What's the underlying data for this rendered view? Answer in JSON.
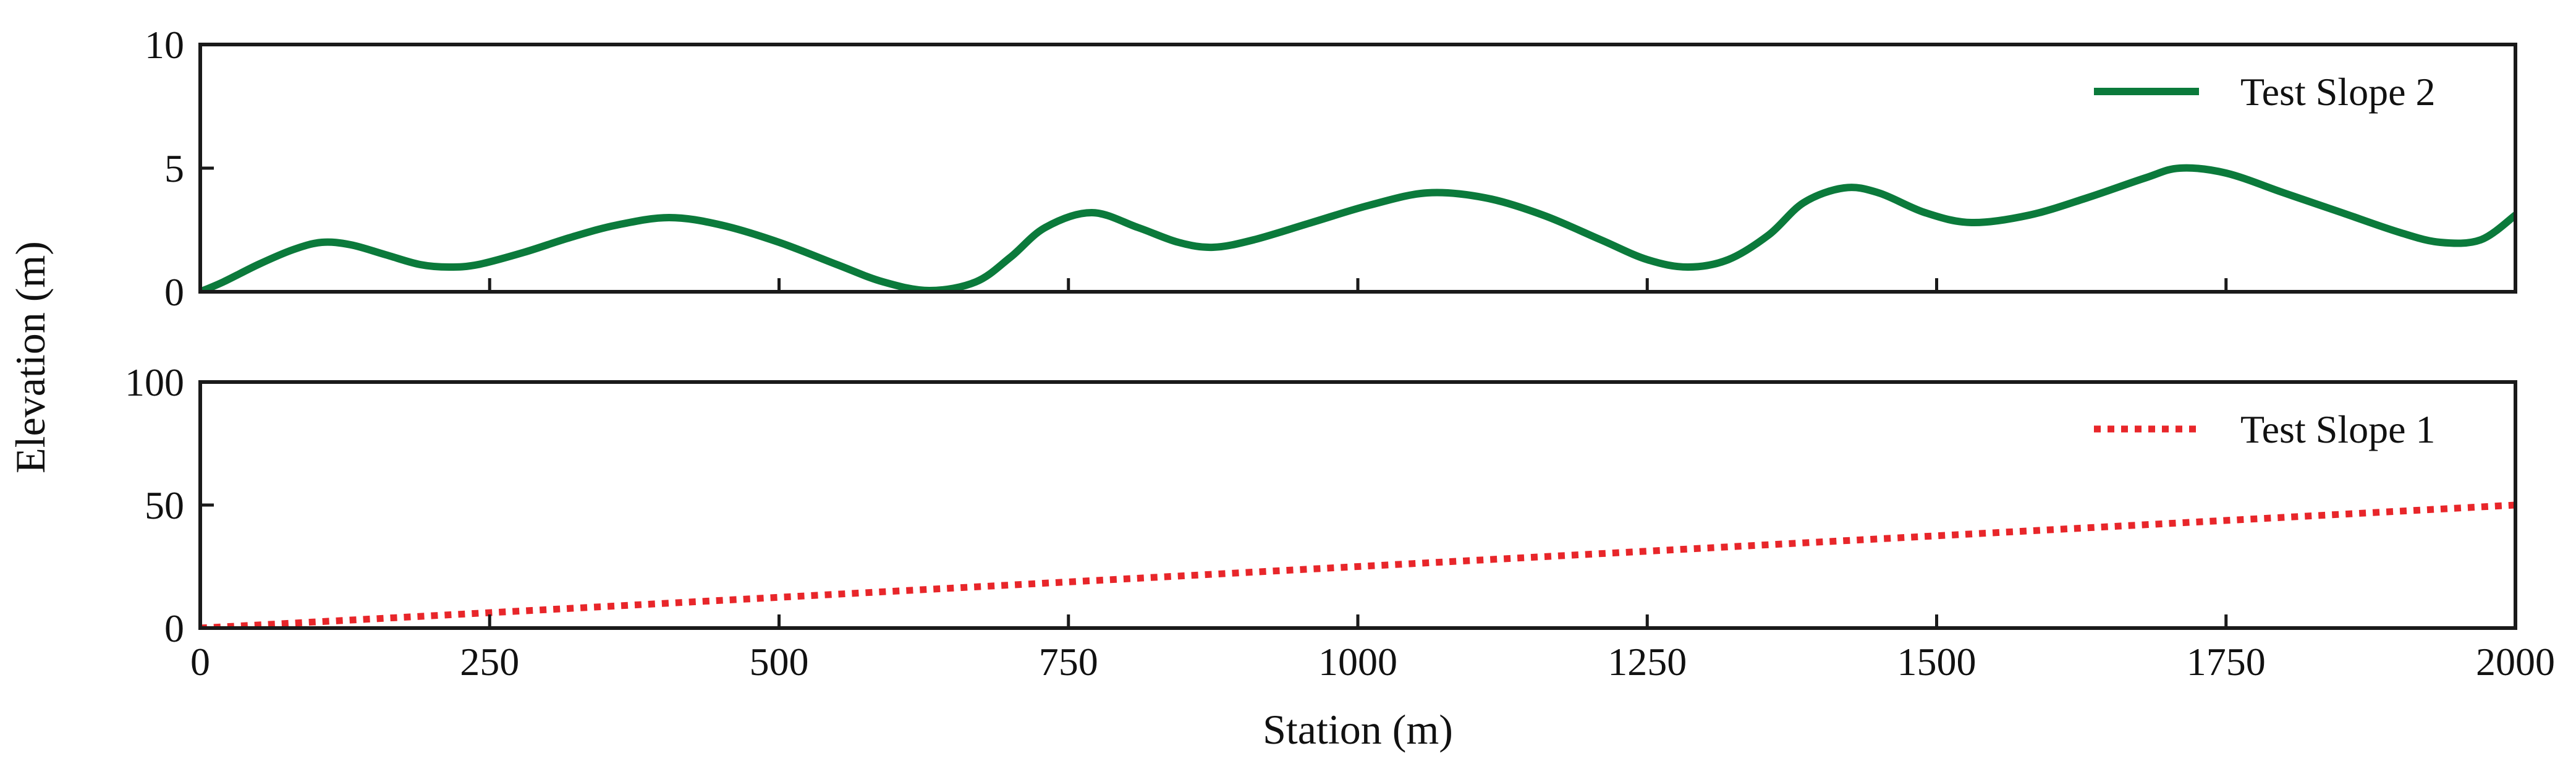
{
  "chart_data": [
    {
      "type": "line",
      "panel": "top",
      "ylim": [
        0,
        10
      ],
      "yticks": [
        0,
        5,
        10
      ],
      "legend_position": "top-right",
      "series": [
        {
          "name": "Test Slope 2",
          "color": "#0b7a3b",
          "line_style": "solid",
          "x": [
            0,
            20,
            50,
            80,
            105,
            130,
            160,
            190,
            215,
            240,
            280,
            320,
            360,
            405,
            450,
            500,
            550,
            590,
            630,
            670,
            700,
            730,
            770,
            810,
            845,
            875,
            910,
            960,
            1010,
            1060,
            1110,
            1160,
            1210,
            1250,
            1285,
            1320,
            1355,
            1385,
            1420,
            1450,
            1490,
            1530,
            1580,
            1630,
            1680,
            1710,
            1750,
            1800,
            1850,
            1900,
            1935,
            1970,
            2000
          ],
          "y": [
            0,
            0.4,
            1.1,
            1.7,
            2.0,
            1.9,
            1.5,
            1.1,
            1.0,
            1.1,
            1.6,
            2.2,
            2.7,
            3.0,
            2.7,
            2.0,
            1.1,
            0.4,
            0.05,
            0.4,
            1.4,
            2.6,
            3.2,
            2.6,
            2.0,
            1.8,
            2.1,
            2.8,
            3.5,
            4.0,
            3.8,
            3.1,
            2.1,
            1.3,
            1.0,
            1.3,
            2.3,
            3.6,
            4.2,
            4.0,
            3.2,
            2.8,
            3.1,
            3.8,
            4.6,
            5.0,
            4.8,
            4.0,
            3.2,
            2.4,
            2.0,
            2.1,
            3.1
          ]
        }
      ]
    },
    {
      "type": "line",
      "panel": "bottom",
      "ylim": [
        0,
        100
      ],
      "yticks": [
        0,
        50,
        100
      ],
      "legend_position": "top-right",
      "series": [
        {
          "name": "Test Slope 1",
          "color": "#e8262a",
          "line_style": "dotted",
          "x": [
            0,
            2000
          ],
          "y": [
            0,
            50
          ]
        }
      ]
    }
  ],
  "shared": {
    "xlabel": "Station (m)",
    "ylabel": "Elevation (m)",
    "xlim": [
      0,
      2000
    ],
    "xticks": [
      0,
      250,
      500,
      750,
      1000,
      1250,
      1500,
      1750,
      2000
    ]
  }
}
